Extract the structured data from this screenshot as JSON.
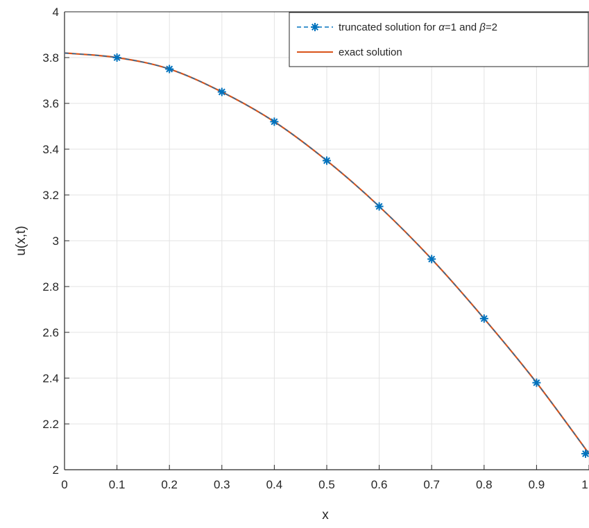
{
  "chart_data": {
    "type": "line",
    "title": "",
    "xlabel": "x",
    "ylabel": "u(x,t)",
    "xlim": [
      0,
      1
    ],
    "ylim": [
      2,
      4
    ],
    "grid": true,
    "legend_position": "top-right",
    "x_ticks": [
      0,
      0.1,
      0.2,
      0.3,
      0.4,
      0.5,
      0.6,
      0.7,
      0.8,
      0.9,
      1
    ],
    "x_tick_labels": [
      "0",
      "0.1",
      "0.2",
      "0.3",
      "0.4",
      "0.5",
      "0.6",
      "0.7",
      "0.8",
      "0.9",
      "1"
    ],
    "y_ticks": [
      2,
      2.2,
      2.4,
      2.6,
      2.8,
      3,
      3.2,
      3.4,
      3.6,
      3.8,
      4
    ],
    "y_tick_labels": [
      "2",
      "2.2",
      "2.4",
      "2.6",
      "2.8",
      "3",
      "3.2",
      "3.4",
      "3.6",
      "3.8",
      "4"
    ],
    "series": [
      {
        "name": "truncated solution for α=1 and β=2",
        "style": "dashed line with asterisk markers",
        "color": "#0072BD",
        "x": [
          0,
          0.1,
          0.2,
          0.3,
          0.4,
          0.5,
          0.6,
          0.7,
          0.8,
          0.9,
          1
        ],
        "y": [
          3.82,
          3.8,
          3.75,
          3.65,
          3.52,
          3.35,
          3.15,
          2.92,
          2.66,
          2.38,
          2.07
        ]
      },
      {
        "name": "exact solution",
        "style": "solid line",
        "color": "#D95319",
        "x": [
          0,
          0.1,
          0.2,
          0.3,
          0.4,
          0.5,
          0.6,
          0.7,
          0.8,
          0.9,
          1
        ],
        "y": [
          3.82,
          3.8,
          3.75,
          3.65,
          3.52,
          3.35,
          3.15,
          2.92,
          2.66,
          2.38,
          2.07
        ]
      }
    ],
    "legend": {
      "series1_prefix": "truncated solution for ",
      "alpha_symbol": "α",
      "alpha_value": "=1 and ",
      "beta_symbol": "β",
      "beta_value": "=2",
      "series2_label": "exact solution"
    }
  }
}
